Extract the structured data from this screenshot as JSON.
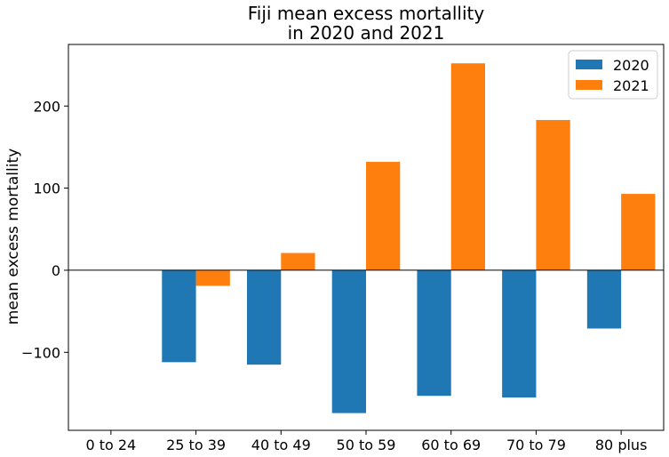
{
  "chart_data": {
    "type": "bar",
    "title": [
      "Fiji mean excess mortallity",
      "in 2020 and 2021"
    ],
    "xlabel": "",
    "ylabel": "mean excess mortallity",
    "categories": [
      "0 to 24",
      "25 to 39",
      "40 to 49",
      "50 to 59",
      "60 to 69",
      "70 to 79",
      "80 plus"
    ],
    "series": [
      {
        "name": "2020",
        "color": "#1f77b4",
        "values": [
          0,
          -112,
          -115,
          -174,
          -153,
          -155,
          -71
        ]
      },
      {
        "name": "2021",
        "color": "#ff7f0e",
        "values": [
          0,
          -19,
          21,
          132,
          252,
          183,
          93
        ]
      }
    ],
    "ylim": [
      -195,
      275
    ],
    "yticks": [
      -100,
      0,
      100,
      200
    ],
    "ytick_labels": [
      "−100",
      "0",
      "100",
      "200"
    ],
    "zero_line": true,
    "grid": false,
    "legend_position": "top-right"
  }
}
